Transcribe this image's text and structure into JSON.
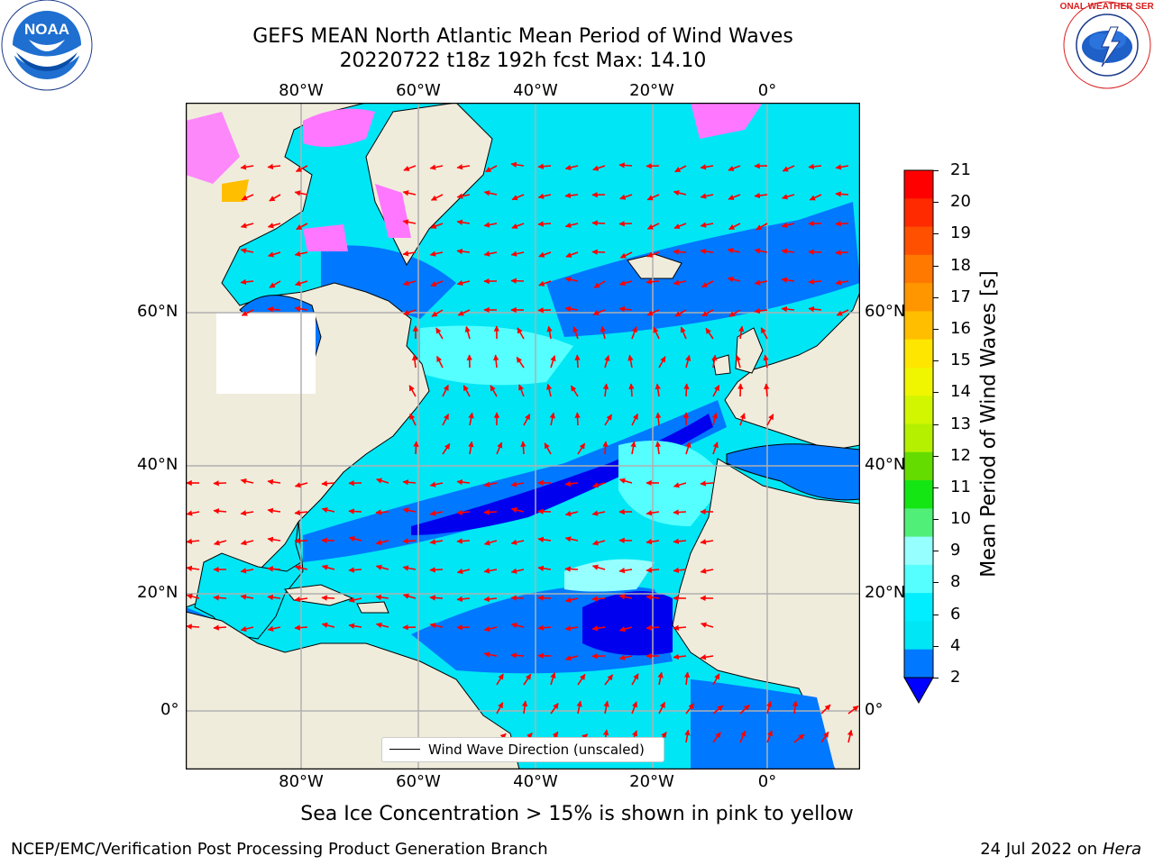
{
  "title_line1": "GEFS MEAN North Atlantic Mean Period of Wind Waves",
  "title_line2": "20220722 t18z 192h fcst   Max: 14.10",
  "logos": {
    "left": {
      "text": "NOAA",
      "ring_text": "NATIONAL OCEANIC AND ATMOSPHERIC ADMINISTRATION · U.S. DEPARTMENT OF COMMERCE",
      "icon": "noaa-logo"
    },
    "right": {
      "ring_text": "NATIONAL WEATHER SERVICE",
      "icon": "nws-logo"
    }
  },
  "map": {
    "lon_labels_top": [
      "80°W",
      "60°W",
      "40°W",
      "20°W",
      "0°"
    ],
    "lon_labels_bottom": [
      "80°W",
      "60°W",
      "40°W",
      "20°W",
      "0°"
    ],
    "lat_labels_left": [
      "60°N",
      "40°N",
      "20°N",
      "0°"
    ],
    "lat_labels_right": [
      "60°N",
      "40°N",
      "20°N",
      "0°"
    ],
    "gridlines": true,
    "arrow_color": "#ff0000",
    "land_color": "#efecdc",
    "legend": {
      "label": "Wind Wave Direction (unscaled)",
      "placement": "lower-center"
    }
  },
  "colorbar": {
    "label": "Mean Period of Wind Waves [s]",
    "ticks": [
      "21",
      "20",
      "19",
      "18",
      "17",
      "16",
      "15",
      "14",
      "13",
      "12",
      "11",
      "10",
      "9",
      "8",
      "6",
      "4",
      "2"
    ],
    "colors_top_to_bottom": [
      "#ff0000",
      "#ff2a00",
      "#ff5000",
      "#ff7800",
      "#ff9600",
      "#ffbe00",
      "#ffe600",
      "#f0f500",
      "#d2f500",
      "#b4f000",
      "#64dc00",
      "#14e614",
      "#50f078",
      "#96ffff",
      "#55ffff",
      "#00eeff",
      "#00e6f5",
      "#0078ff"
    ],
    "extend_color": "#0000ff"
  },
  "note": "Sea Ice Concentration > 15% is shown in pink to yellow",
  "footer_left": "NCEP/EMC/Verification Post Processing Product Generation Branch",
  "footer_right_date": "24 Jul 2022 on ",
  "footer_right_host": "Hera"
}
